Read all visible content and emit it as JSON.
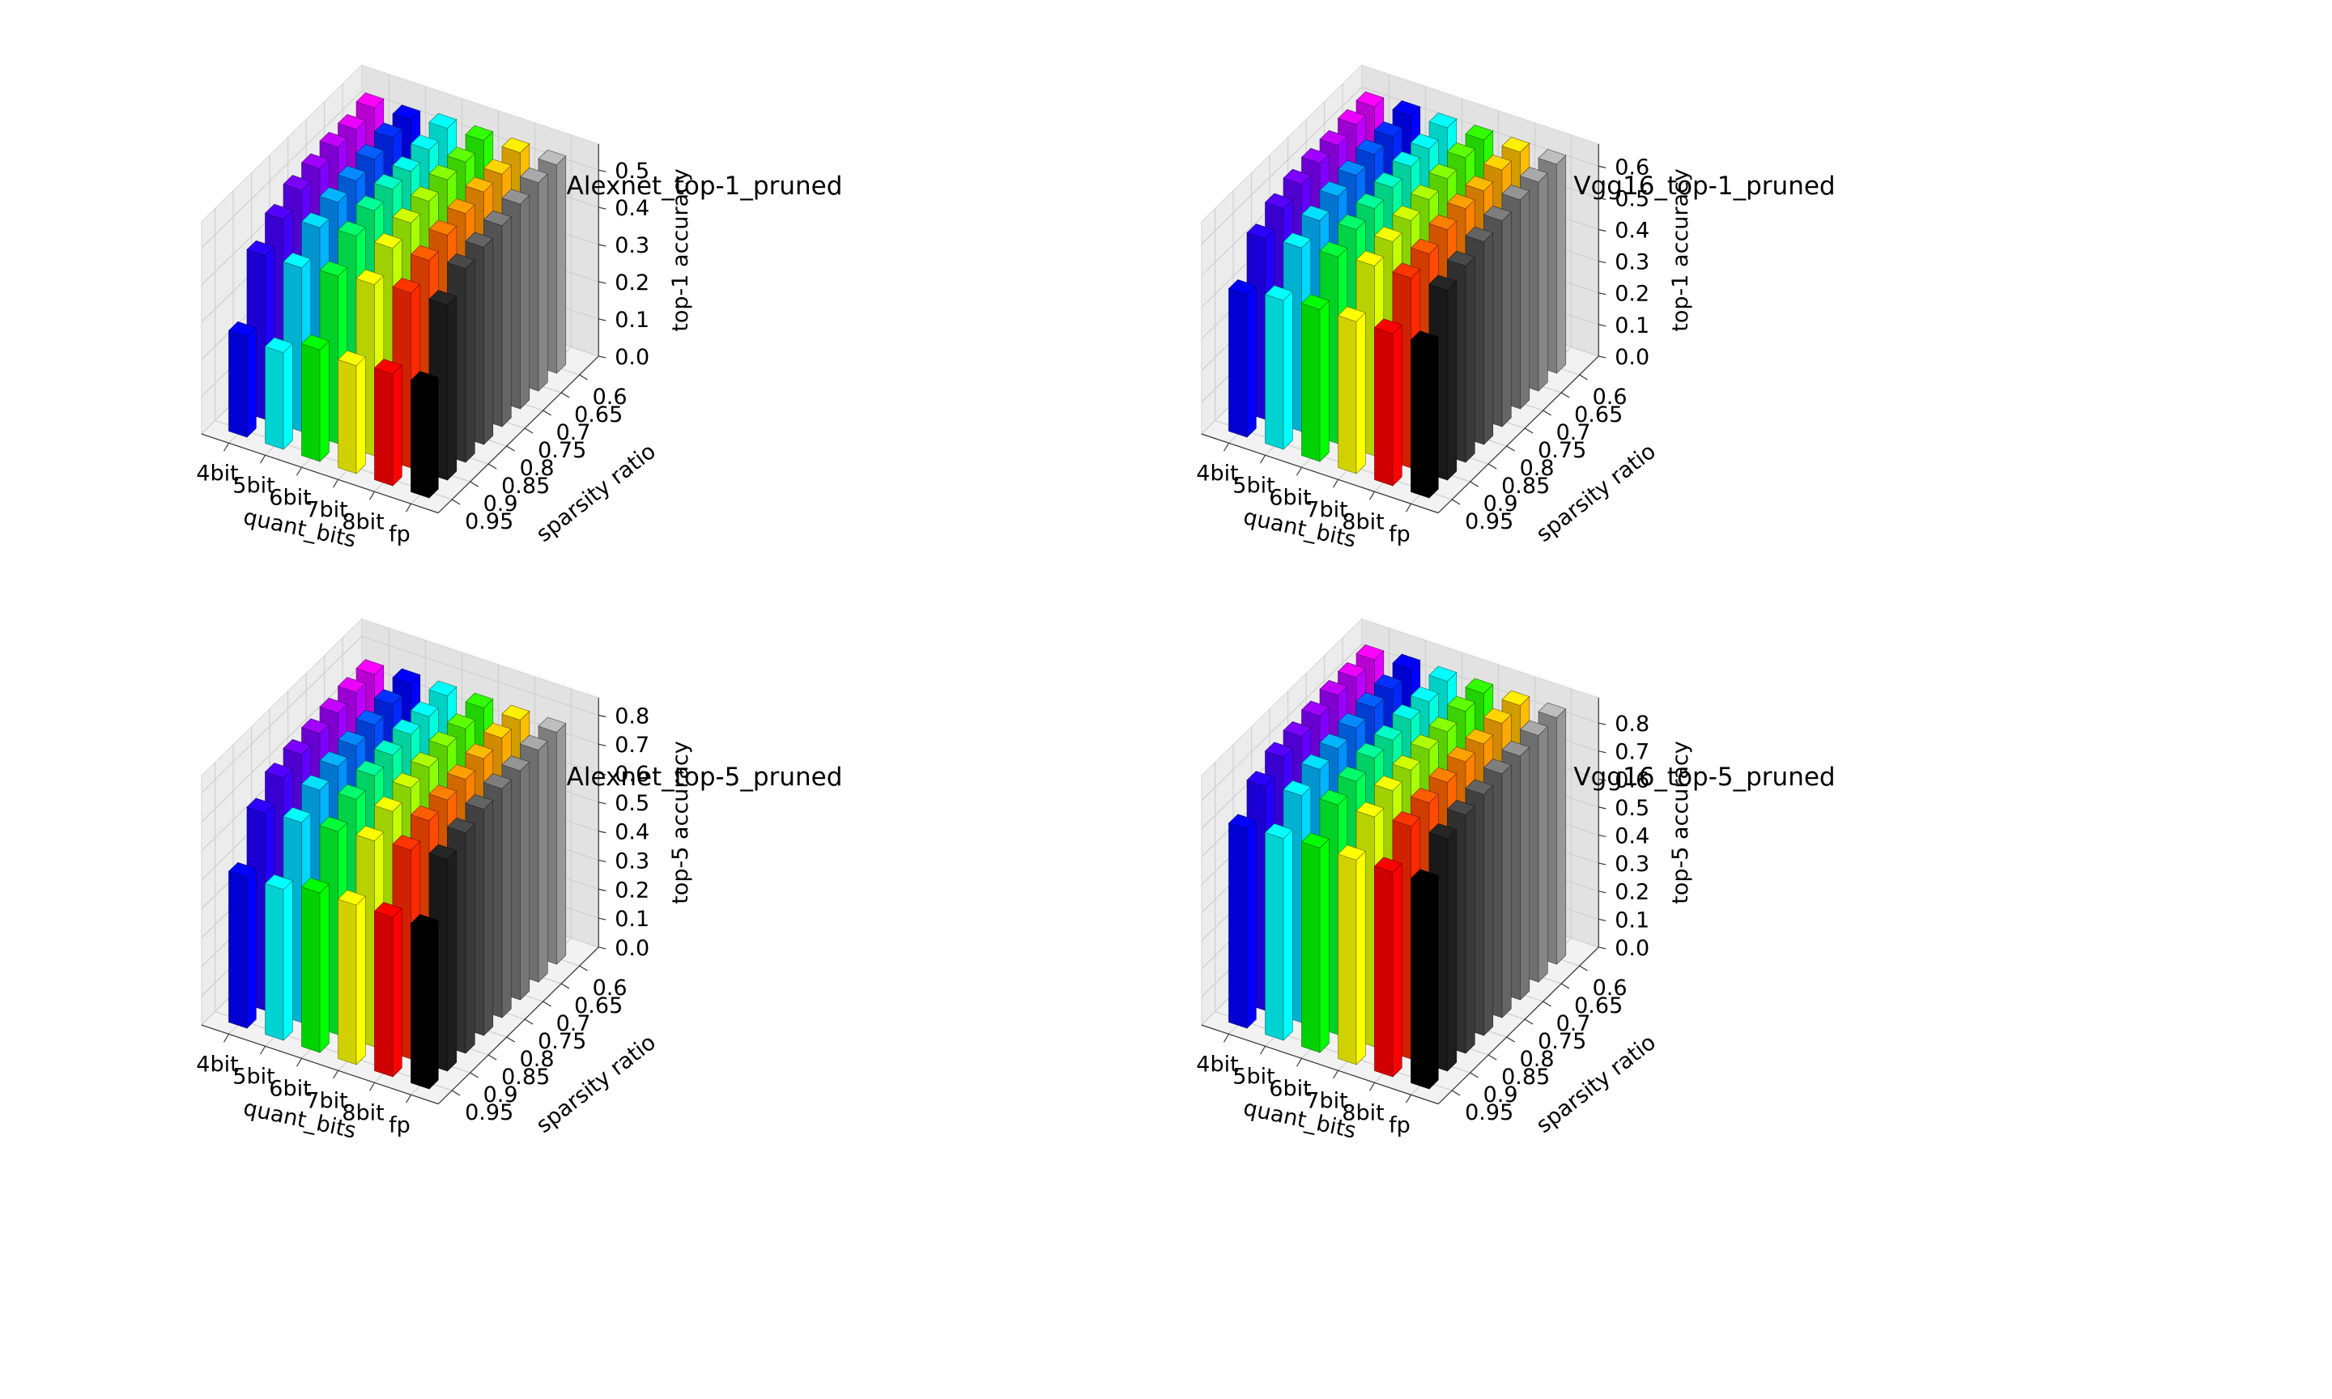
{
  "chart_data": [
    {
      "type": "bar3d",
      "title": "Alexnet_top-1_pruned",
      "xlabel": "quant_bits",
      "ylabel": "sparsity ratio",
      "zlabel": "top-1 accuracy",
      "x_categories": [
        "fp",
        "8bit",
        "7bit",
        "6bit",
        "5bit",
        "4bit"
      ],
      "y_categories": [
        "0.95",
        "0.9",
        "0.85",
        "0.8",
        "0.75",
        "0.7",
        "0.65",
        "0.6"
      ],
      "z_ticks": [
        "0.0",
        "0.1",
        "0.2",
        "0.3",
        "0.4",
        "0.5"
      ],
      "zlim": [
        0,
        0.57
      ],
      "values": [
        [
          0.3,
          0.47,
          0.52,
          0.53,
          0.54,
          0.55,
          0.56,
          0.56
        ],
        [
          0.3,
          0.47,
          0.51,
          0.53,
          0.54,
          0.55,
          0.55,
          0.56
        ],
        [
          0.29,
          0.46,
          0.51,
          0.53,
          0.54,
          0.55,
          0.55,
          0.56
        ],
        [
          0.3,
          0.45,
          0.51,
          0.53,
          0.54,
          0.54,
          0.55,
          0.56
        ],
        [
          0.26,
          0.44,
          0.5,
          0.52,
          0.53,
          0.54,
          0.55,
          0.55
        ],
        [
          0.27,
          0.44,
          0.49,
          0.52,
          0.53,
          0.54,
          0.54,
          0.55
        ]
      ],
      "grid": true
    },
    {
      "type": "bar3d",
      "title": "Vgg16_top-1_pruned",
      "xlabel": "quant_bits",
      "ylabel": "sparsity ratio",
      "zlabel": "top-1 accuracy",
      "x_categories": [
        "fp",
        "8bit",
        "7bit",
        "6bit",
        "5bit",
        "4bit"
      ],
      "y_categories": [
        "0.95",
        "0.9",
        "0.85",
        "0.8",
        "0.75",
        "0.7",
        "0.65",
        "0.6"
      ],
      "z_ticks": [
        "0.0",
        "0.1",
        "0.2",
        "0.3",
        "0.4",
        "0.5",
        "0.6"
      ],
      "zlim": [
        0,
        0.67
      ],
      "values": [
        [
          0.48,
          0.6,
          0.62,
          0.64,
          0.65,
          0.66,
          0.66,
          0.66
        ],
        [
          0.48,
          0.6,
          0.62,
          0.64,
          0.65,
          0.65,
          0.66,
          0.66
        ],
        [
          0.48,
          0.6,
          0.62,
          0.63,
          0.64,
          0.65,
          0.66,
          0.66
        ],
        [
          0.48,
          0.59,
          0.62,
          0.63,
          0.64,
          0.65,
          0.65,
          0.66
        ],
        [
          0.47,
          0.58,
          0.61,
          0.63,
          0.64,
          0.65,
          0.65,
          0.66
        ],
        [
          0.45,
          0.57,
          0.61,
          0.63,
          0.64,
          0.64,
          0.65,
          0.65
        ]
      ],
      "grid": true
    },
    {
      "type": "bar3d",
      "title": "Alexnet_top-5_pruned",
      "xlabel": "quant_bits",
      "ylabel": "sparsity ratio",
      "zlabel": "top-5 accuracy",
      "x_categories": [
        "fp",
        "8bit",
        "7bit",
        "6bit",
        "5bit",
        "4bit"
      ],
      "y_categories": [
        "0.95",
        "0.9",
        "0.85",
        "0.8",
        "0.75",
        "0.7",
        "0.65",
        "0.6"
      ],
      "z_ticks": [
        "0.0",
        "0.1",
        "0.2",
        "0.3",
        "0.4",
        "0.5",
        "0.6",
        "0.7",
        "0.8"
      ],
      "zlim": [
        0,
        0.86
      ],
      "values": [
        [
          0.55,
          0.73,
          0.76,
          0.78,
          0.79,
          0.79,
          0.8,
          0.8
        ],
        [
          0.55,
          0.72,
          0.76,
          0.77,
          0.78,
          0.79,
          0.8,
          0.8
        ],
        [
          0.55,
          0.71,
          0.75,
          0.77,
          0.78,
          0.79,
          0.79,
          0.8
        ],
        [
          0.55,
          0.7,
          0.75,
          0.77,
          0.78,
          0.79,
          0.79,
          0.8
        ],
        [
          0.52,
          0.69,
          0.74,
          0.76,
          0.77,
          0.78,
          0.79,
          0.8
        ],
        [
          0.52,
          0.68,
          0.74,
          0.76,
          0.77,
          0.78,
          0.79,
          0.79
        ]
      ],
      "grid": true
    },
    {
      "type": "bar3d",
      "title": "Vgg16_top-5_pruned",
      "xlabel": "quant_bits",
      "ylabel": "sparsity ratio",
      "zlabel": "top-5 accuracy",
      "x_categories": [
        "fp",
        "8bit",
        "7bit",
        "6bit",
        "5bit",
        "4bit"
      ],
      "y_categories": [
        "0.95",
        "0.9",
        "0.85",
        "0.8",
        "0.75",
        "0.7",
        "0.65",
        "0.6"
      ],
      "z_ticks": [
        "0.0",
        "0.1",
        "0.2",
        "0.3",
        "0.4",
        "0.5",
        "0.6",
        "0.7",
        "0.8"
      ],
      "zlim": [
        0,
        0.89
      ],
      "values": [
        [
          0.73,
          0.83,
          0.85,
          0.86,
          0.87,
          0.87,
          0.88,
          0.88
        ],
        [
          0.73,
          0.83,
          0.85,
          0.86,
          0.87,
          0.87,
          0.88,
          0.88
        ],
        [
          0.73,
          0.82,
          0.85,
          0.86,
          0.87,
          0.87,
          0.88,
          0.88
        ],
        [
          0.73,
          0.82,
          0.84,
          0.86,
          0.86,
          0.87,
          0.87,
          0.88
        ],
        [
          0.72,
          0.81,
          0.84,
          0.85,
          0.86,
          0.87,
          0.87,
          0.88
        ],
        [
          0.71,
          0.8,
          0.84,
          0.85,
          0.86,
          0.87,
          0.87,
          0.87
        ]
      ],
      "grid": true
    }
  ],
  "colors": {
    "bars": [
      [
        "#000000",
        "#1e1e1e",
        "#3a3a3a",
        "#4f4f4f",
        "#656565",
        "#767676",
        "#878787",
        "#989898"
      ],
      [
        "#ff0000",
        "#ff2a00",
        "#ff4a00",
        "#ff6600",
        "#ff7f00",
        "#ff9500",
        "#ffaa00",
        "#ffbf00"
      ],
      [
        "#ffff00",
        "#e0ff00",
        "#c4ff00",
        "#a8ff00",
        "#8cff00",
        "#6cff00",
        "#4aff00",
        "#28ff00"
      ],
      [
        "#00ff00",
        "#00ff2e",
        "#00ff55",
        "#00ff7a",
        "#00ffa0",
        "#00ffc0",
        "#00ffe0",
        "#00fff0"
      ],
      [
        "#00ffff",
        "#00d8ff",
        "#00b4ff",
        "#0090ff",
        "#006eff",
        "#004cff",
        "#0028ff",
        "#0000ff"
      ],
      [
        "#0000ff",
        "#2200ff",
        "#4400ff",
        "#6200ff",
        "#8000ff",
        "#9c00ff",
        "#bc00ff",
        "#e000ff"
      ]
    ],
    "pane_side": "#ececec",
    "pane_back": "#e2e2e2",
    "pane_floor": "#f2f2f2",
    "grid": "#cfcfcf"
  }
}
